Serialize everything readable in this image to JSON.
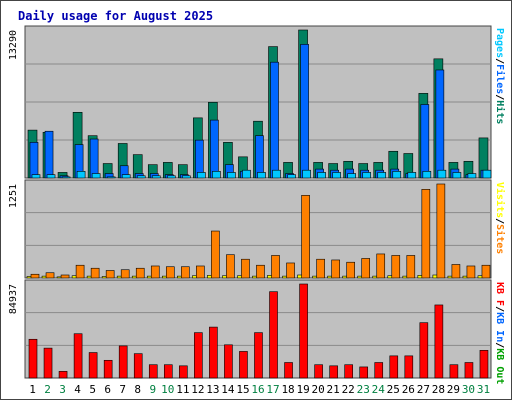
{
  "chart_data": [
    {
      "type": "bar",
      "title": "Daily usage for August 2025",
      "categories": [
        "1",
        "2",
        "3",
        "4",
        "5",
        "6",
        "7",
        "8",
        "9",
        "10",
        "11",
        "12",
        "13",
        "14",
        "15",
        "16",
        "17",
        "18",
        "19",
        "20",
        "21",
        "22",
        "23",
        "24",
        "25",
        "26",
        "27",
        "28",
        "29",
        "30",
        "31"
      ],
      "weekend_days": [
        "2",
        "3",
        "9",
        "10",
        "16",
        "17",
        "23",
        "24",
        "30",
        "31"
      ],
      "ymax_label": "13290",
      "ylim": [
        0,
        13290
      ],
      "legend_right": [
        {
          "text": "Pages",
          "color": "#00c8ff"
        },
        {
          "text": "/",
          "color": "#000000"
        },
        {
          "text": "Files",
          "color": "#0066ff"
        },
        {
          "text": "/",
          "color": "#000000"
        },
        {
          "text": "Hits",
          "color": "#008060"
        }
      ],
      "series": [
        {
          "name": "Hits",
          "color": "#008060",
          "values": [
            4300,
            4100,
            500,
            5900,
            3800,
            1300,
            3100,
            2100,
            1200,
            1400,
            1200,
            5400,
            6800,
            3200,
            1900,
            5100,
            11800,
            1400,
            13290,
            1400,
            1300,
            1500,
            1300,
            1400,
            2400,
            2200,
            7600,
            10700,
            1400,
            1500,
            3600
          ]
        },
        {
          "name": "Files",
          "color": "#0066ff",
          "values": [
            3200,
            4200,
            200,
            3000,
            3500,
            400,
            1100,
            400,
            400,
            300,
            300,
            3400,
            5200,
            1200,
            600,
            3800,
            10400,
            400,
            12000,
            800,
            700,
            800,
            700,
            700,
            800,
            400,
            6600,
            9700,
            800,
            300,
            700
          ]
        },
        {
          "name": "Pages",
          "color": "#00c8ff",
          "values": [
            300,
            300,
            100,
            600,
            400,
            100,
            300,
            200,
            200,
            200,
            200,
            500,
            600,
            500,
            700,
            500,
            700,
            300,
            700,
            500,
            500,
            400,
            500,
            500,
            600,
            500,
            600,
            700,
            500,
            400,
            700
          ]
        }
      ]
    },
    {
      "type": "bar",
      "ymax_label": "1251",
      "ylim": [
        0,
        1251
      ],
      "legend_right": [
        {
          "text": "Visits",
          "color": "#ffff00"
        },
        {
          "text": "/",
          "color": "#000000"
        },
        {
          "text": "Sites",
          "color": "#ff8000"
        }
      ],
      "series": [
        {
          "name": "Sites",
          "color": "#ff8000",
          "values": [
            50,
            70,
            40,
            170,
            130,
            100,
            110,
            130,
            160,
            150,
            150,
            160,
            625,
            310,
            250,
            170,
            300,
            200,
            1100,
            250,
            240,
            210,
            260,
            320,
            300,
            300,
            1180,
            1251,
            180,
            160,
            170
          ]
        },
        {
          "name": "Visits",
          "color": "#ffff00",
          "values": [
            20,
            25,
            15,
            30,
            25,
            20,
            25,
            25,
            25,
            25,
            25,
            30,
            35,
            30,
            30,
            25,
            35,
            25,
            40,
            25,
            25,
            25,
            25,
            25,
            30,
            25,
            35,
            40,
            25,
            25,
            30
          ]
        }
      ]
    },
    {
      "type": "bar",
      "ymax_label": "84937",
      "ylim": [
        0,
        84937
      ],
      "legend_right": [
        {
          "text": "KB F",
          "color": "#ff0000"
        },
        {
          "text": "/",
          "color": "#000000"
        },
        {
          "text": "KB In",
          "color": "#0066ff"
        },
        {
          "text": "/",
          "color": "#000000"
        },
        {
          "text": "KB Out",
          "color": "#00a000"
        }
      ],
      "series": [
        {
          "name": "KB F",
          "color": "#ff0000",
          "values": [
            35000,
            27000,
            6000,
            40000,
            23000,
            16000,
            29000,
            22000,
            12000,
            12000,
            11000,
            41000,
            46000,
            30000,
            24000,
            41000,
            78000,
            14000,
            84937,
            12000,
            11000,
            12000,
            10000,
            14000,
            20000,
            20000,
            50000,
            66000,
            12000,
            14000,
            25000
          ]
        }
      ]
    }
  ]
}
